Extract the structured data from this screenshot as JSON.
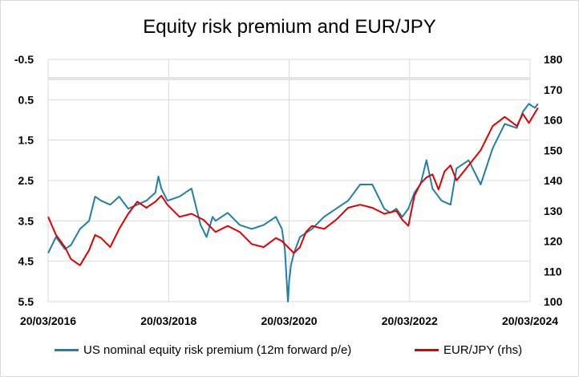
{
  "title": "Equity risk premium and EUR/JPY",
  "colors": {
    "erp": "#1f7fa8",
    "eurjpy": "#e00000",
    "grid": "#d9d9d9"
  },
  "legend": {
    "erp": "US nominal equity risk premium (12m forward p/e)",
    "eurjpy": "EUR/JPY (rhs)"
  },
  "chart_data": {
    "type": "line",
    "title": "Equity risk premium and EUR/JPY",
    "x_ticks": [
      "20/03/2016",
      "20/03/2018",
      "20/03/2020",
      "20/03/2022",
      "20/03/2024"
    ],
    "left_axis": {
      "ticks": [
        "-0.5",
        "0.5",
        "1.5",
        "2.5",
        "3.5",
        "4.5",
        "5.5"
      ],
      "range": [
        -0.5,
        5.5
      ],
      "inverted": true
    },
    "right_axis": {
      "ticks": [
        "100",
        "110",
        "120",
        "130",
        "140",
        "150",
        "160",
        "170",
        "180"
      ],
      "range": [
        100,
        180
      ]
    },
    "grid": true,
    "legend_position": "bottom",
    "series": [
      {
        "name": "US nominal equity risk premium (12m forward p/e)",
        "axis": "left",
        "x": [
          2016.22,
          2016.35,
          2016.5,
          2016.6,
          2016.75,
          2016.9,
          2017.0,
          2017.1,
          2017.25,
          2017.4,
          2017.55,
          2017.7,
          2017.85,
          2018.0,
          2018.05,
          2018.1,
          2018.2,
          2018.4,
          2018.6,
          2018.75,
          2018.85,
          2018.95,
          2019.0,
          2019.2,
          2019.4,
          2019.6,
          2019.8,
          2020.0,
          2020.1,
          2020.15,
          2020.2,
          2020.22,
          2020.25,
          2020.3,
          2020.4,
          2020.6,
          2020.8,
          2021.0,
          2021.2,
          2021.4,
          2021.6,
          2021.8,
          2021.9,
          2022.0,
          2022.1,
          2022.2,
          2022.3,
          2022.4,
          2022.5,
          2022.6,
          2022.75,
          2022.9,
          2023.0,
          2023.2,
          2023.4,
          2023.6,
          2023.8,
          2024.0,
          2024.1,
          2024.2,
          2024.3,
          2024.35
        ],
        "y": [
          4.3,
          3.9,
          4.2,
          4.1,
          3.7,
          3.5,
          2.9,
          3.0,
          3.1,
          2.9,
          3.2,
          3.1,
          3.0,
          2.8,
          2.4,
          2.7,
          3.0,
          2.9,
          2.7,
          3.6,
          3.9,
          3.4,
          3.5,
          3.3,
          3.6,
          3.7,
          3.6,
          3.4,
          3.7,
          4.2,
          5.5,
          5.0,
          4.6,
          4.3,
          3.9,
          3.7,
          3.4,
          3.2,
          3.0,
          2.6,
          2.6,
          3.2,
          3.3,
          3.2,
          3.4,
          3.2,
          2.8,
          2.6,
          2.0,
          2.7,
          3.0,
          3.1,
          2.2,
          2.0,
          2.6,
          1.7,
          1.1,
          1.2,
          0.8,
          0.6,
          0.7,
          0.6
        ]
      },
      {
        "name": "EUR/JPY (rhs)",
        "axis": "right",
        "x": [
          2016.22,
          2016.35,
          2016.5,
          2016.6,
          2016.75,
          2016.9,
          2017.0,
          2017.1,
          2017.25,
          2017.4,
          2017.55,
          2017.7,
          2017.85,
          2018.0,
          2018.1,
          2018.2,
          2018.4,
          2018.6,
          2018.8,
          2019.0,
          2019.2,
          2019.4,
          2019.6,
          2019.8,
          2020.0,
          2020.1,
          2020.2,
          2020.3,
          2020.4,
          2020.5,
          2020.6,
          2020.8,
          2021.0,
          2021.2,
          2021.4,
          2021.6,
          2021.8,
          2022.0,
          2022.1,
          2022.2,
          2022.3,
          2022.4,
          2022.5,
          2022.6,
          2022.7,
          2022.8,
          2022.9,
          2023.0,
          2023.2,
          2023.4,
          2023.6,
          2023.8,
          2024.0,
          2024.1,
          2024.2,
          2024.35
        ],
        "y": [
          128,
          122,
          118,
          114,
          112,
          117,
          122,
          121,
          118,
          124,
          129,
          133,
          131,
          133,
          135,
          132,
          128,
          129,
          127,
          123,
          125,
          123,
          119,
          118,
          121,
          120,
          118,
          116,
          118,
          123,
          125,
          124,
          127,
          131,
          132,
          131,
          129,
          130,
          127,
          125,
          135,
          139,
          141,
          142,
          137,
          143,
          145,
          140,
          145,
          150,
          158,
          161,
          158,
          162,
          159,
          164
        ]
      }
    ]
  }
}
